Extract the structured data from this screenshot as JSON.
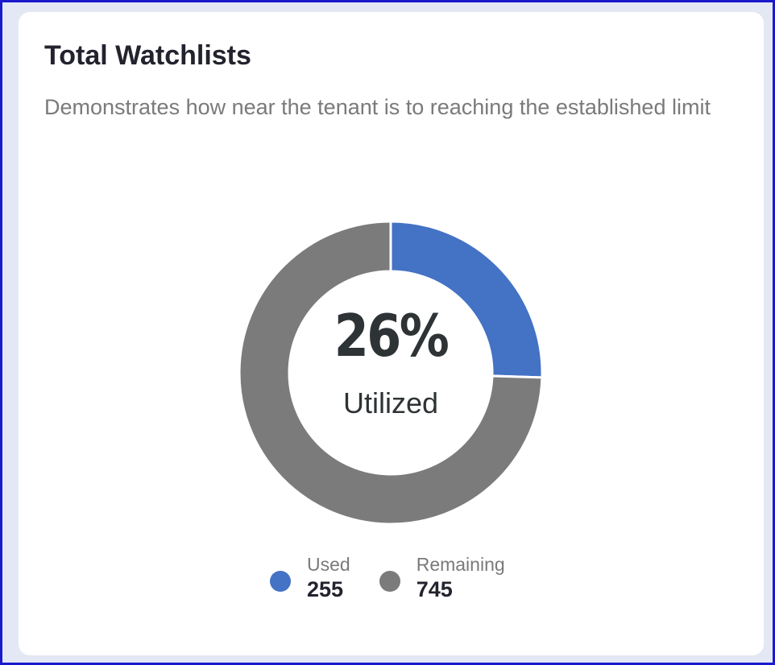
{
  "card": {
    "title": "Total Watchlists",
    "subtitle": "Demonstrates how near the tenant is to reaching the established limit"
  },
  "center": {
    "value": "26%",
    "label": "Utilized"
  },
  "chart_data": {
    "type": "pie",
    "style": "donut",
    "categories": [
      "Used",
      "Remaining"
    ],
    "values": [
      255,
      745
    ],
    "colors": [
      "#4472c4",
      "#7b7b7b"
    ],
    "legend_placement": "bottom"
  },
  "legend": {
    "items": [
      {
        "name": "Used",
        "value": "255",
        "color": "#4472c4"
      },
      {
        "name": "Remaining",
        "value": "745",
        "color": "#7b7b7b"
      }
    ]
  }
}
